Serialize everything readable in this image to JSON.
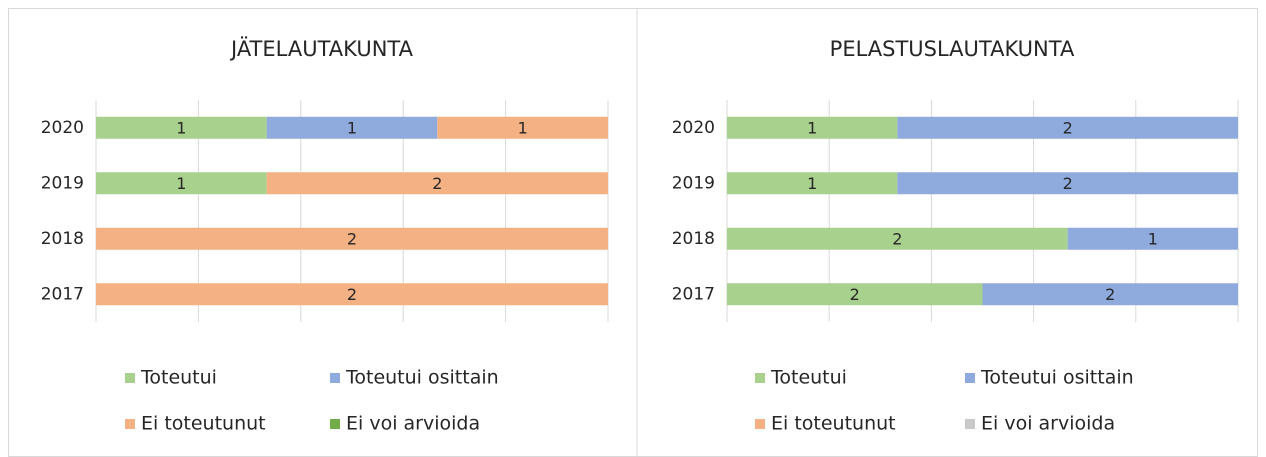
{
  "chart_data": [
    {
      "type": "bar",
      "orientation": "horizontal",
      "stacked": "percent",
      "title": "JÄTELAUTAKUNTA",
      "categories": [
        "2020",
        "2019",
        "2018",
        "2017"
      ],
      "series": [
        {
          "name": "Toteutui",
          "color": "#a9d18e",
          "values": [
            1,
            1,
            0,
            0
          ]
        },
        {
          "name": "Toteutui osittain",
          "color": "#8faadc",
          "values": [
            1,
            0,
            0,
            0
          ]
        },
        {
          "name": "Ei toteutunut",
          "color": "#f4b183",
          "values": [
            1,
            2,
            2,
            2
          ]
        },
        {
          "name": "Ei voi arvioida",
          "color": "#70ad47",
          "values": [
            0,
            0,
            0,
            0
          ]
        }
      ],
      "xlim": [
        0,
        100
      ],
      "xticks": [
        0,
        20,
        40,
        60,
        80,
        100
      ],
      "grid": true,
      "legend": "bottom"
    },
    {
      "type": "bar",
      "orientation": "horizontal",
      "stacked": "percent",
      "title": "PELASTUSLAUTAKUNTA",
      "categories": [
        "2020",
        "2019",
        "2018",
        "2017"
      ],
      "series": [
        {
          "name": "Toteutui",
          "color": "#a9d18e",
          "values": [
            1,
            1,
            2,
            2
          ]
        },
        {
          "name": "Toteutui osittain",
          "color": "#8faadc",
          "values": [
            2,
            2,
            1,
            2
          ]
        },
        {
          "name": "Ei toteutunut",
          "color": "#f4b183",
          "values": [
            0,
            0,
            0,
            0
          ]
        },
        {
          "name": "Ei voi arvioida",
          "color": "#c9c9c9",
          "values": [
            0,
            0,
            0,
            0
          ]
        }
      ],
      "xlim": [
        0,
        100
      ],
      "xticks": [
        0,
        20,
        40,
        60,
        80,
        100
      ],
      "grid": true,
      "legend": "bottom"
    }
  ]
}
